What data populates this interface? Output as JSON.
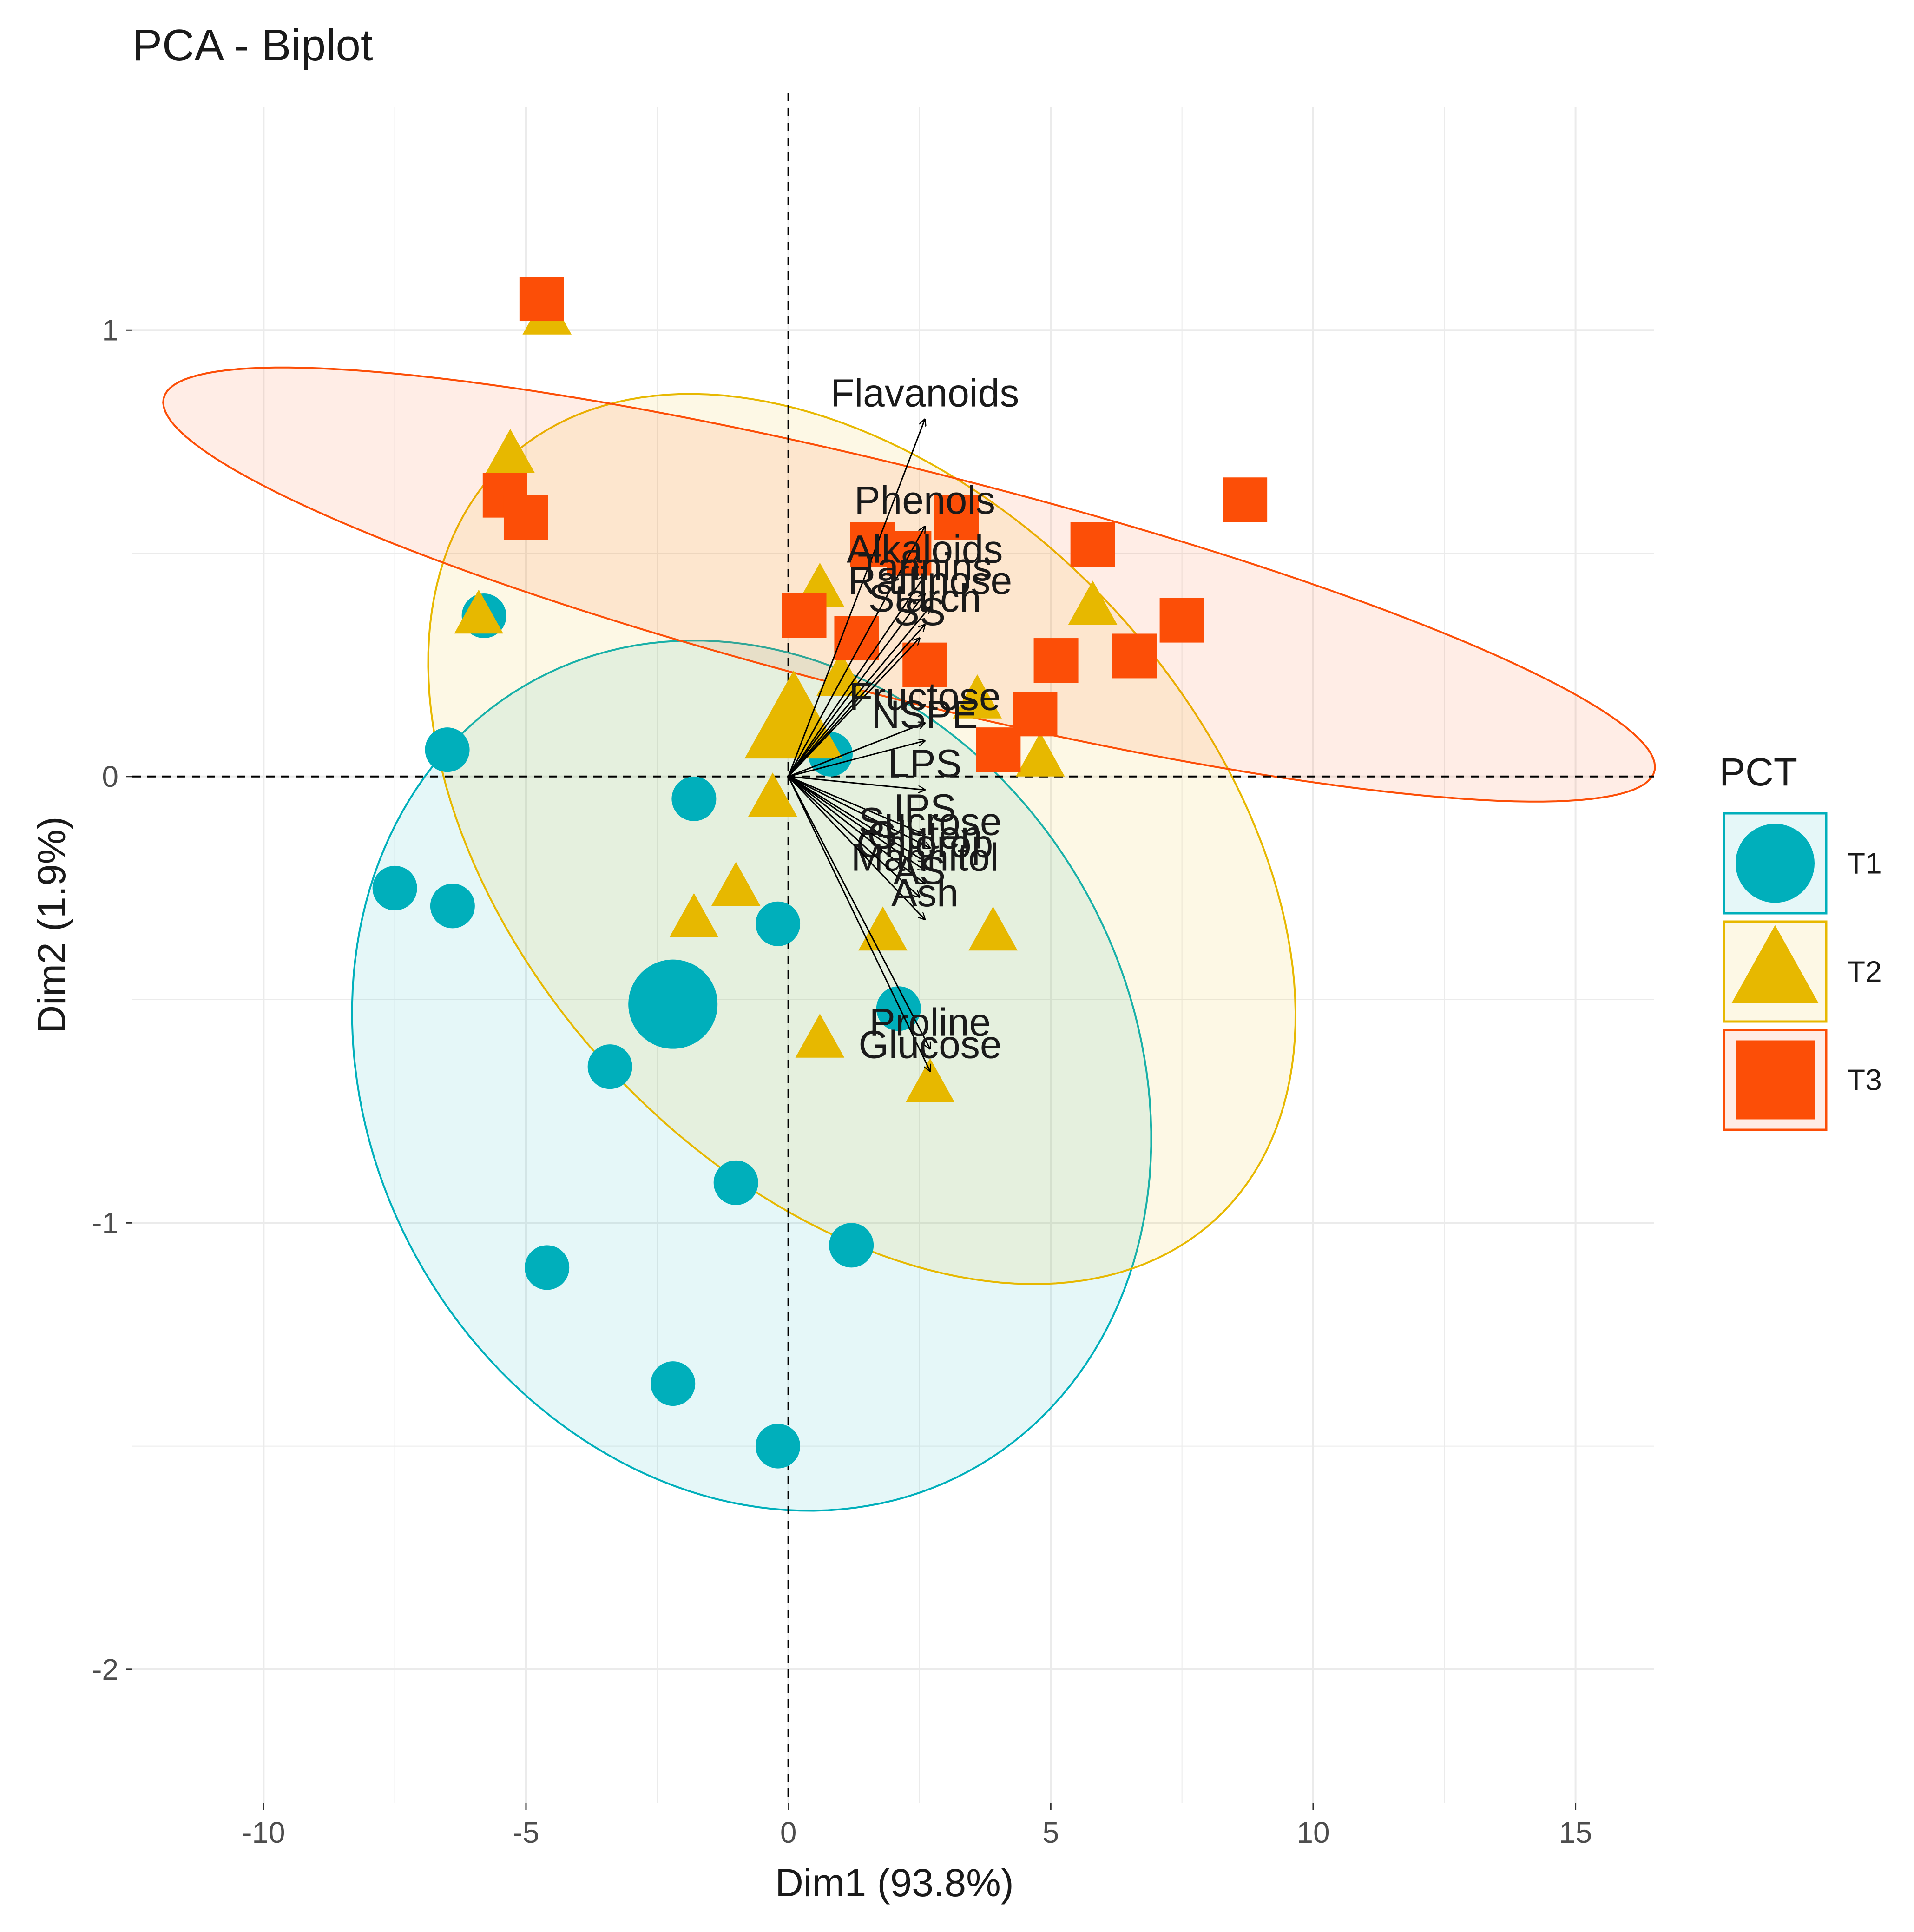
{
  "chart_data": {
    "type": "scatter",
    "subtype": "pca-biplot",
    "title": "PCA - Biplot",
    "xlabel": "Dim1 (93.8%)",
    "ylabel": "Dim2 (1.9%)",
    "xlim": [
      -12.5,
      16.5
    ],
    "ylim": [
      -2.3,
      1.5
    ],
    "x_ticks": [
      -10,
      -5,
      0,
      5,
      10,
      15
    ],
    "x_tick_labels": [
      "-10",
      "-5",
      "0",
      "5",
      "10",
      "15"
    ],
    "y_ticks": [
      -2,
      -1,
      0,
      1
    ],
    "y_tick_labels": [
      "-2",
      "-1",
      "0",
      "1"
    ],
    "grid": true,
    "reference_lines": {
      "x": 0,
      "y": 0,
      "style": "dashed"
    },
    "legend": {
      "title": "PCT",
      "position": "right",
      "entries": [
        {
          "label": "T1",
          "shape": "circle",
          "color": "#00AFBB"
        },
        {
          "label": "T2",
          "shape": "triangle",
          "color": "#E7B800"
        },
        {
          "label": "T3",
          "shape": "square",
          "color": "#FC4E07"
        }
      ]
    },
    "groups": [
      {
        "name": "T1",
        "shape": "circle",
        "color": "#00AFBB",
        "ellipse": {
          "cx": -0.7,
          "cy": -0.67,
          "rx": 11.3,
          "ry": 0.65,
          "angle_deg": -80.0
        },
        "centroid": [
          -2.2,
          -0.51
        ],
        "points": [
          [
            -6.5,
            0.06
          ],
          [
            -5.8,
            0.36
          ],
          [
            -1.8,
            -0.05
          ],
          [
            -7.5,
            -0.25
          ],
          [
            -6.4,
            -0.29
          ],
          [
            -0.2,
            -0.33
          ],
          [
            2.1,
            -0.52
          ],
          [
            -3.4,
            -0.65
          ],
          [
            -1.0,
            -0.91
          ],
          [
            1.2,
            -1.05
          ],
          [
            -4.6,
            -1.1
          ],
          [
            -2.2,
            -1.36
          ],
          [
            -0.2,
            -1.5
          ],
          [
            0.8,
            0.05
          ]
        ]
      },
      {
        "name": "T2",
        "shape": "triangle",
        "color": "#E7B800",
        "ellipse": {
          "cx": 1.4,
          "cy": -0.14,
          "rx": 12.2,
          "ry": 0.62,
          "angle_deg": -65.0
        },
        "centroid": [
          0.1,
          0.12
        ],
        "points": [
          [
            -4.6,
            1.03
          ],
          [
            -5.3,
            0.72
          ],
          [
            -5.9,
            0.36
          ],
          [
            0.6,
            0.42
          ],
          [
            5.8,
            0.38
          ],
          [
            3.6,
            0.17
          ],
          [
            4.8,
            0.04
          ],
          [
            -0.3,
            -0.05
          ],
          [
            -1.0,
            -0.25
          ],
          [
            -1.8,
            -0.32
          ],
          [
            1.8,
            -0.35
          ],
          [
            3.9,
            -0.35
          ],
          [
            0.6,
            -0.59
          ],
          [
            2.7,
            -0.69
          ],
          [
            1.0,
            0.22
          ]
        ]
      },
      {
        "name": "T3",
        "shape": "square",
        "color": "#FC4E07",
        "ellipse": {
          "cx": 2.3,
          "cy": 0.43,
          "rx": 15.0,
          "ry": 0.25,
          "angle_deg": -19.0
        },
        "points": [
          [
            -4.7,
            1.07
          ],
          [
            -5.4,
            0.63
          ],
          [
            -5.0,
            0.58
          ],
          [
            8.7,
            0.62
          ],
          [
            3.2,
            0.58
          ],
          [
            5.8,
            0.52
          ],
          [
            1.6,
            0.52
          ],
          [
            2.3,
            0.5
          ],
          [
            7.5,
            0.35
          ],
          [
            0.3,
            0.36
          ],
          [
            1.3,
            0.31
          ],
          [
            5.1,
            0.26
          ],
          [
            6.6,
            0.27
          ],
          [
            2.6,
            0.25
          ],
          [
            4.7,
            0.14
          ],
          [
            4.0,
            0.06
          ]
        ]
      }
    ],
    "variables": [
      {
        "name": "Flavanoids",
        "x": 2.6,
        "y": 0.8
      },
      {
        "name": "Phenols",
        "x": 2.6,
        "y": 0.56
      },
      {
        "name": "Alkaloids",
        "x": 2.6,
        "y": 0.45
      },
      {
        "name": "Tannins",
        "x": 2.6,
        "y": 0.41
      },
      {
        "name": "Raffinose",
        "x": 2.7,
        "y": 0.38
      },
      {
        "name": "Starch",
        "x": 2.6,
        "y": 0.34
      },
      {
        "name": "SS",
        "x": 2.5,
        "y": 0.31
      },
      {
        "name": "Fructose",
        "x": 2.6,
        "y": 0.12
      },
      {
        "name": "NSPE",
        "x": 2.6,
        "y": 0.08
      },
      {
        "name": "LPS",
        "x": 2.6,
        "y": -0.03
      },
      {
        "name": "IPS",
        "x": 2.6,
        "y": -0.13
      },
      {
        "name": "Sucrose",
        "x": 2.7,
        "y": -0.16
      },
      {
        "name": "Gluten",
        "x": 2.6,
        "y": -0.19
      },
      {
        "name": "Chlorop",
        "x": 2.6,
        "y": -0.21
      },
      {
        "name": "Mannitol",
        "x": 2.6,
        "y": -0.24
      },
      {
        "name": "AS",
        "x": 2.5,
        "y": -0.27
      },
      {
        "name": "Ash",
        "x": 2.6,
        "y": -0.32
      },
      {
        "name": "Proline",
        "x": 2.7,
        "y": -0.61
      },
      {
        "name": "Glucose",
        "x": 2.7,
        "y": -0.66
      }
    ]
  }
}
